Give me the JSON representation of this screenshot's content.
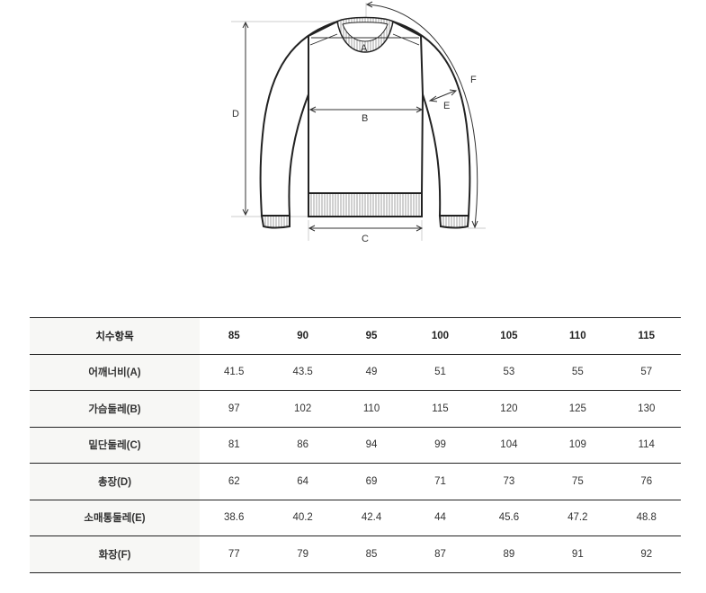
{
  "diagram": {
    "labels": {
      "A": "A",
      "B": "B",
      "C": "C",
      "D": "D",
      "E": "E",
      "F": "F"
    }
  },
  "table": {
    "header": {
      "label": "치수항목",
      "sizes": [
        "85",
        "90",
        "95",
        "100",
        "105",
        "110",
        "115"
      ]
    },
    "rows": [
      {
        "label": "어깨너비(A)",
        "values": [
          "41.5",
          "43.5",
          "49",
          "51",
          "53",
          "55",
          "57"
        ]
      },
      {
        "label": "가슴둘레(B)",
        "values": [
          "97",
          "102",
          "110",
          "115",
          "120",
          "125",
          "130"
        ]
      },
      {
        "label": "밑단둘레(C)",
        "values": [
          "81",
          "86",
          "94",
          "99",
          "104",
          "109",
          "114"
        ]
      },
      {
        "label": "총장(D)",
        "values": [
          "62",
          "64",
          "69",
          "71",
          "73",
          "75",
          "76"
        ]
      },
      {
        "label": "소매통둘레(E)",
        "values": [
          "38.6",
          "40.2",
          "42.4",
          "44",
          "45.6",
          "47.2",
          "48.8"
        ]
      },
      {
        "label": "화장(F)",
        "values": [
          "77",
          "79",
          "85",
          "87",
          "89",
          "91",
          "92"
        ]
      }
    ]
  }
}
